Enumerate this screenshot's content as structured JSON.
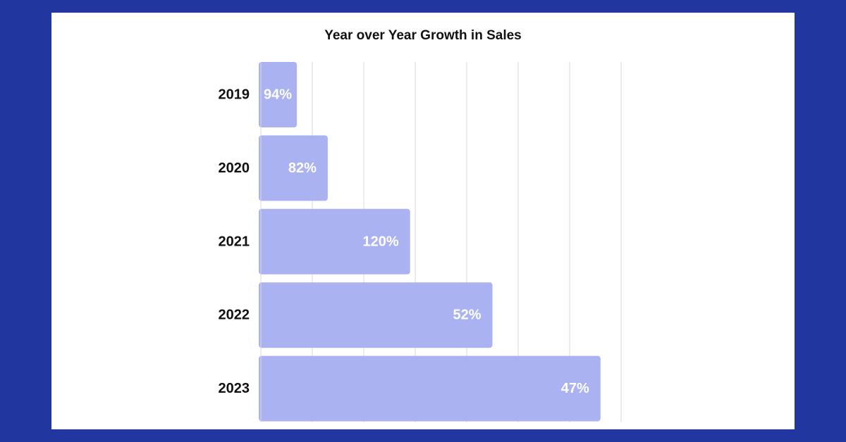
{
  "colors": {
    "background": "#2236a0",
    "card": "#ffffff",
    "bar": "#aab2f2",
    "bar_label": "#ffffff",
    "gridline": "#d9d9d9",
    "text": "#111111"
  },
  "chart_data": {
    "type": "bar",
    "orientation": "horizontal",
    "title": "Year over Year Growth in Sales",
    "xlabel": "",
    "ylabel": "",
    "grid": true,
    "categories": [
      "2019",
      "2020",
      "2021",
      "2022",
      "2023"
    ],
    "bar_lengths": [
      0.7,
      1.3,
      2.9,
      4.5,
      6.6
    ],
    "xlim": [
      0,
      7
    ],
    "data_labels": [
      "94%",
      "82%",
      "120%",
      "52%",
      "47%"
    ]
  }
}
